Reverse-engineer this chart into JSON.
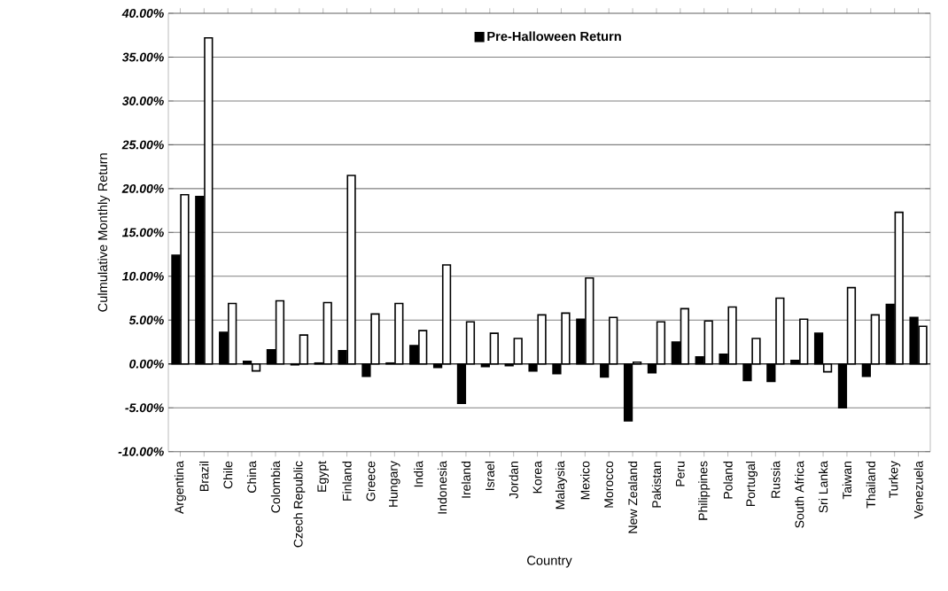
{
  "chart_data": {
    "type": "bar",
    "xlabel": "Country",
    "ylabel": "Culmulative Monthly Return",
    "categories": [
      "Argentina",
      "Brazil",
      "Chile",
      "China",
      "Colombia",
      "Czech Republic",
      "Egypt",
      "Finland",
      "Greece",
      "Hungary",
      "India",
      "Indonesia",
      "Ireland",
      "Israel",
      "Jordan",
      "Korea",
      "Malaysia",
      "Mexico",
      "Morocco",
      "New Zealand",
      "Pakistan",
      "Peru",
      "Philippines",
      "Poland",
      "Portugal",
      "Russia",
      "South Africa",
      "Sri Lanka",
      "Taiwan",
      "Thailand",
      "Turkey",
      "Venezuela"
    ],
    "series": [
      {
        "name": "Pre-Halloween Return",
        "color": "#000000",
        "values": [
          12.4,
          19.1,
          3.6,
          0.3,
          1.6,
          -0.1,
          0.1,
          1.5,
          -1.4,
          0.1,
          2.1,
          -0.4,
          -4.5,
          -0.3,
          -0.2,
          -0.8,
          -1.1,
          5.1,
          -1.5,
          -6.5,
          -1.0,
          2.5,
          0.8,
          1.1,
          -1.9,
          -2.0,
          0.4,
          3.5,
          -5.0,
          -1.4,
          6.8,
          5.3
        ]
      },
      {
        "color": "#ffffff",
        "values": [
          19.3,
          37.2,
          6.9,
          -0.8,
          7.2,
          3.3,
          7.0,
          21.5,
          5.7,
          6.9,
          3.8,
          11.3,
          4.8,
          3.5,
          2.9,
          5.6,
          5.8,
          9.8,
          5.3,
          0.2,
          4.8,
          6.3,
          4.9,
          6.5,
          2.9,
          7.5,
          5.1,
          -0.9,
          8.7,
          5.6,
          17.3,
          4.3
        ]
      }
    ],
    "ylim": [
      -10,
      40
    ],
    "yticks": [
      {
        "value": -10,
        "label": "-10.00%"
      },
      {
        "value": -5,
        "label": "-5.00%"
      },
      {
        "value": 0,
        "label": "0.00%"
      },
      {
        "value": 5,
        "label": "5.00%"
      },
      {
        "value": 10,
        "label": "10.00%"
      },
      {
        "value": 15,
        "label": "15.00%"
      },
      {
        "value": 20,
        "label": "20.00%"
      },
      {
        "value": 25,
        "label": "25.00%"
      },
      {
        "value": 30,
        "label": "30.00%"
      },
      {
        "value": 35,
        "label": "35.00%"
      },
      {
        "value": 40,
        "label": "40.00%"
      }
    ],
    "grid": "y",
    "legend": "top"
  }
}
